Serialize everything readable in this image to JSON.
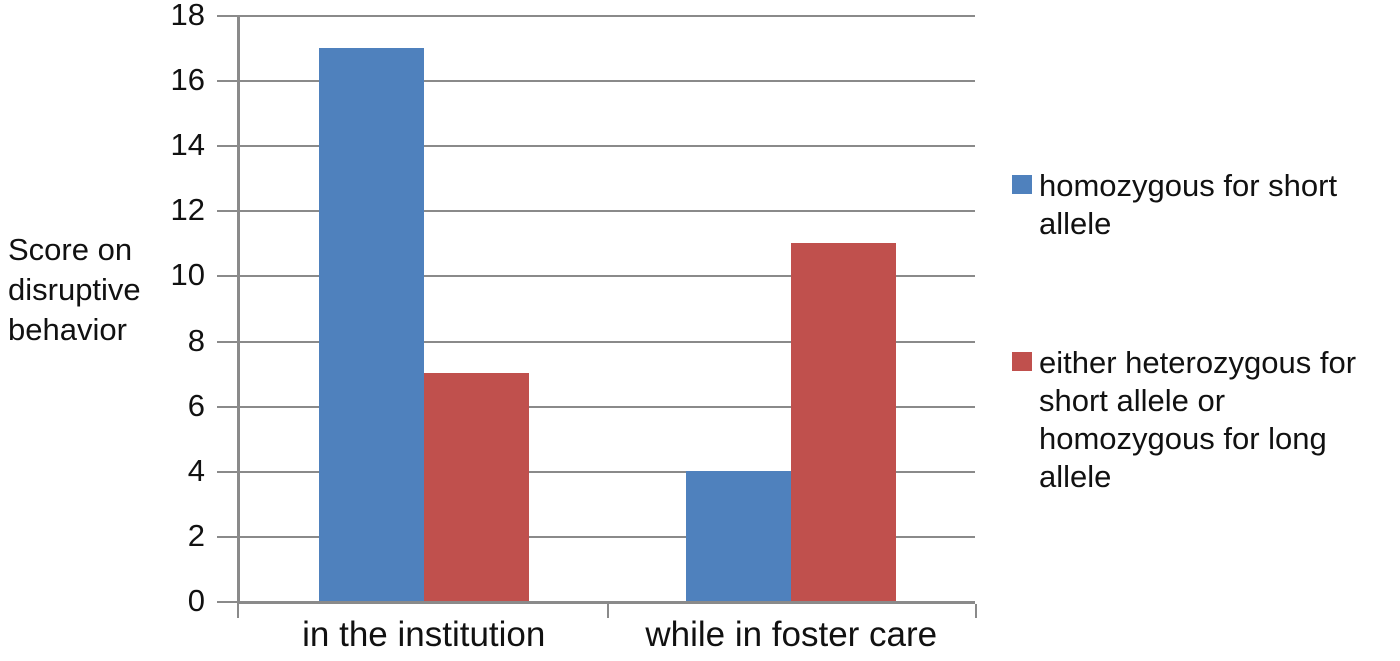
{
  "figure": {
    "background": "#ffffff",
    "text_color": "#111111",
    "gridline_color": "#8a8a8a",
    "axis_color": "#8a8a8a"
  },
  "chart_data": {
    "type": "bar",
    "title": "",
    "xlabel": "",
    "ylabel": "Score on disruptive behavior",
    "categories": [
      "in the institution",
      "while in foster care"
    ],
    "series": [
      {
        "name": "homozygous for short allele",
        "color": "#4f81bd",
        "values": [
          17,
          4
        ]
      },
      {
        "name": "either heterozygous for short allele or homozygous for long allele",
        "color": "#c0504d",
        "values": [
          7,
          11
        ]
      }
    ],
    "ylim": [
      0,
      18
    ],
    "yticks": [
      0,
      2,
      4,
      6,
      8,
      10,
      12,
      14,
      16,
      18
    ],
    "grid": true,
    "legend_position": "right"
  }
}
